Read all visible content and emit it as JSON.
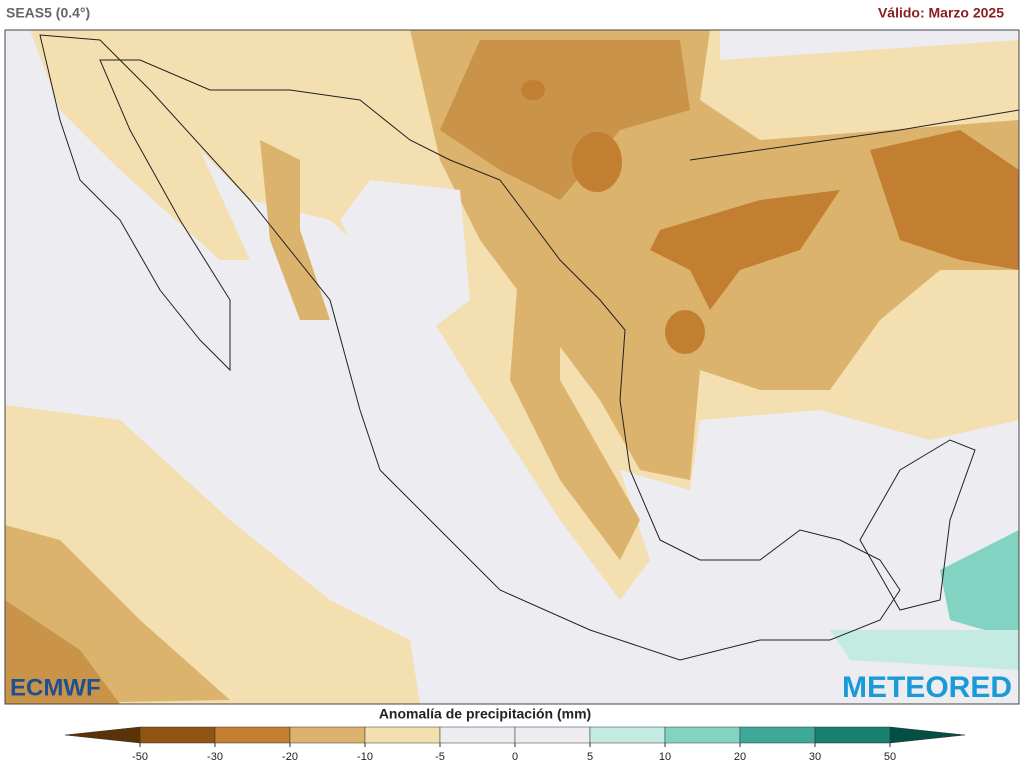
{
  "header": {
    "model": "SEAS5 (0.4°)",
    "valid": "Válido: Marzo 2025"
  },
  "legend": {
    "title": "Anomalía de precipitación (mm)",
    "ticks": [
      -50,
      -30,
      -20,
      -10,
      -5,
      0,
      5,
      10,
      20,
      30,
      50
    ],
    "colors": [
      "#8f5411",
      "#c27f32",
      "#dcb36c",
      "#f3dfb0",
      "#ececf1",
      "#ececf1",
      "#c3ebe1",
      "#82d3c2",
      "#3ea99a",
      "#17806f"
    ],
    "extend_colors": [
      "#5c3306",
      "#034f44"
    ]
  },
  "logos": {
    "left": "ECMWF",
    "right": "METEORED"
  }
}
